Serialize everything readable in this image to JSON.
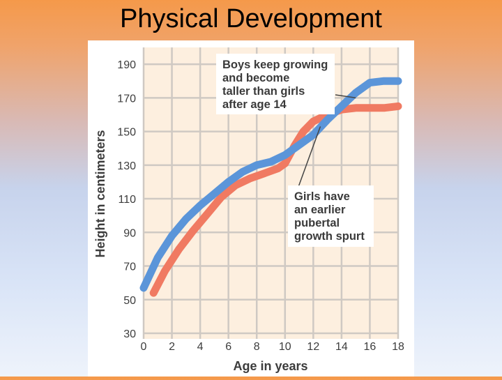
{
  "slide": {
    "title": "Physical Development"
  },
  "chart_data": {
    "type": "line",
    "xlabel": "Age in years",
    "ylabel": "Height in centimeters",
    "xlim": [
      0,
      18
    ],
    "ylim": [
      30,
      200
    ],
    "x_ticks": [
      0,
      2,
      4,
      6,
      8,
      10,
      12,
      14,
      16,
      18
    ],
    "y_ticks": [
      30,
      50,
      70,
      90,
      110,
      130,
      150,
      170,
      190
    ],
    "grid": true,
    "series": [
      {
        "color": "#5b95d9",
        "points": [
          [
            0,
            57
          ],
          [
            1,
            75
          ],
          [
            2,
            88
          ],
          [
            3,
            98
          ],
          [
            4,
            106
          ],
          [
            5,
            113
          ],
          [
            6,
            120
          ],
          [
            7,
            126
          ],
          [
            8,
            130
          ],
          [
            9,
            132
          ],
          [
            10,
            136
          ],
          [
            11,
            142
          ],
          [
            12,
            148
          ],
          [
            13,
            157
          ],
          [
            14,
            165
          ],
          [
            15,
            173
          ],
          [
            16,
            179
          ],
          [
            17,
            180
          ],
          [
            18,
            180
          ]
        ]
      },
      {
        "color": "#f07a62",
        "points": [
          [
            0.7,
            54
          ],
          [
            1.5,
            67
          ],
          [
            2.5,
            80
          ],
          [
            3.5,
            91
          ],
          [
            4.5,
            101
          ],
          [
            5.5,
            111
          ],
          [
            6.5,
            118
          ],
          [
            7.5,
            122
          ],
          [
            8.5,
            125
          ],
          [
            9.5,
            128
          ],
          [
            10,
            131
          ],
          [
            10.7,
            142
          ],
          [
            11.3,
            150
          ],
          [
            12,
            156
          ],
          [
            13,
            160
          ],
          [
            14,
            163
          ],
          [
            15,
            164
          ],
          [
            16,
            164
          ],
          [
            17,
            164
          ],
          [
            18,
            165
          ]
        ]
      }
    ],
    "annotations": [
      {
        "lines": [
          "Boys keep growing",
          "and become",
          "taller than girls",
          "after age 14"
        ],
        "points_to": [
          15,
          170
        ]
      },
      {
        "lines": [
          "Girls have",
          "an earlier",
          "pubertal",
          "growth spurt"
        ],
        "points_to": [
          12.5,
          153
        ]
      }
    ]
  }
}
